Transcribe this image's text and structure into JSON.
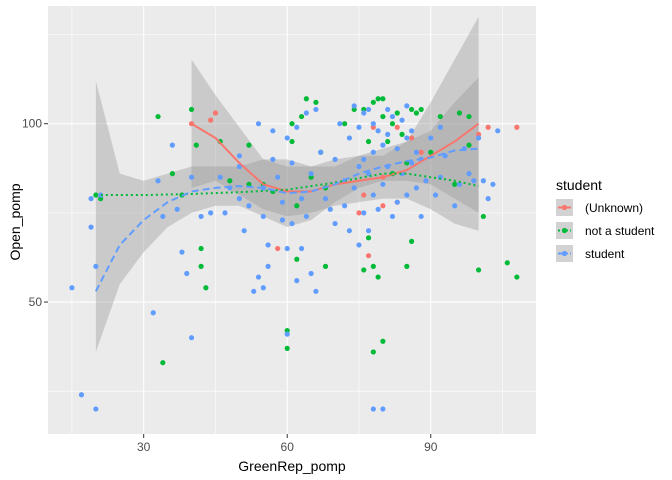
{
  "chart_data": {
    "type": "scatter",
    "xlabel": "GreenRep_pomp",
    "ylabel": "Open_pomp",
    "xlim": [
      10,
      112
    ],
    "ylim": [
      13,
      133
    ],
    "x_ticks": [
      30,
      60,
      90
    ],
    "y_ticks": [
      50,
      100
    ],
    "grid": true,
    "legend": {
      "title": "student",
      "position": "right",
      "entries": [
        "(Unknown)",
        "not a student",
        "student"
      ]
    },
    "series": [
      {
        "name": "(Unknown)",
        "color": "#F8766D",
        "line_style": "solid",
        "points": [
          [
            40,
            100
          ],
          [
            44,
            101
          ],
          [
            45,
            103
          ],
          [
            58,
            65
          ],
          [
            76,
            80
          ],
          [
            77,
            63
          ],
          [
            78,
            99
          ],
          [
            80,
            85
          ],
          [
            83,
            99
          ],
          [
            86,
            96
          ],
          [
            88,
            92
          ],
          [
            100,
            97
          ],
          [
            102,
            99
          ],
          [
            108,
            99
          ],
          [
            80,
            77
          ],
          [
            83,
            78
          ],
          [
            75,
            75
          ]
        ],
        "smooth": [
          [
            40,
            100
          ],
          [
            45,
            96
          ],
          [
            50,
            89
          ],
          [
            55,
            83
          ],
          [
            60,
            81
          ],
          [
            65,
            81
          ],
          [
            70,
            83
          ],
          [
            75,
            84
          ],
          [
            80,
            85
          ],
          [
            85,
            87
          ],
          [
            90,
            91
          ],
          [
            95,
            95
          ],
          [
            100,
            100
          ]
        ],
        "band": [
          [
            40,
            82,
            118
          ],
          [
            45,
            84,
            108
          ],
          [
            50,
            80,
            99
          ],
          [
            55,
            76,
            90
          ],
          [
            60,
            74,
            88
          ],
          [
            65,
            75,
            88
          ],
          [
            70,
            77,
            90
          ],
          [
            75,
            78,
            91
          ],
          [
            80,
            79,
            91
          ],
          [
            85,
            79,
            95
          ],
          [
            90,
            76,
            106
          ],
          [
            95,
            72,
            118
          ],
          [
            100,
            70,
            130
          ]
        ]
      },
      {
        "name": "not a student",
        "color": "#00BA38",
        "line_style": "dotted",
        "points": [
          [
            20,
            80
          ],
          [
            21,
            79
          ],
          [
            33,
            102
          ],
          [
            34,
            33
          ],
          [
            36,
            86
          ],
          [
            38,
            80
          ],
          [
            40,
            104
          ],
          [
            41,
            94
          ],
          [
            42,
            60
          ],
          [
            42,
            65
          ],
          [
            43,
            54
          ],
          [
            46,
            95
          ],
          [
            48,
            84
          ],
          [
            52,
            94
          ],
          [
            52,
            83
          ],
          [
            55,
            83
          ],
          [
            57,
            81
          ],
          [
            60,
            42
          ],
          [
            60,
            37
          ],
          [
            61,
            95
          ],
          [
            61,
            100
          ],
          [
            62,
            77
          ],
          [
            62,
            62
          ],
          [
            63,
            102
          ],
          [
            64,
            107
          ],
          [
            65,
            85
          ],
          [
            66,
            106
          ],
          [
            67,
            92
          ],
          [
            68,
            82
          ],
          [
            68,
            60
          ],
          [
            72,
            100
          ],
          [
            74,
            104
          ],
          [
            76,
            104
          ],
          [
            76,
            59
          ],
          [
            77,
            95
          ],
          [
            77,
            68
          ],
          [
            78,
            106
          ],
          [
            78,
            60
          ],
          [
            78,
            36
          ],
          [
            79,
            107
          ],
          [
            79,
            57
          ],
          [
            80,
            107
          ],
          [
            80,
            39
          ],
          [
            80,
            102
          ],
          [
            81,
            95
          ],
          [
            82,
            100
          ],
          [
            82,
            86
          ],
          [
            83,
            103
          ],
          [
            84,
            97
          ],
          [
            85,
            89
          ],
          [
            85,
            60
          ],
          [
            86,
            104
          ],
          [
            86,
            67
          ],
          [
            87,
            103
          ],
          [
            88,
            104
          ],
          [
            90,
            92
          ],
          [
            92,
            102
          ],
          [
            95,
            83
          ],
          [
            96,
            103
          ],
          [
            98,
            102
          ],
          [
            98,
            94
          ],
          [
            100,
            59
          ],
          [
            101,
            74
          ],
          [
            106,
            61
          ],
          [
            108,
            57
          ]
        ],
        "smooth": [
          [
            20,
            80
          ],
          [
            30,
            80
          ],
          [
            40,
            80.3
          ],
          [
            50,
            80.8
          ],
          [
            60,
            81.5
          ],
          [
            70,
            83.5
          ],
          [
            80,
            86
          ],
          [
            85,
            86
          ],
          [
            90,
            85
          ],
          [
            95,
            84
          ],
          [
            100,
            82.5
          ]
        ]
      },
      {
        "name": "student",
        "color": "#619CFF",
        "line_style": "dashed",
        "points": [
          [
            15,
            54
          ],
          [
            17,
            24
          ],
          [
            19,
            79
          ],
          [
            20,
            20
          ],
          [
            20,
            60
          ],
          [
            21,
            80
          ],
          [
            32,
            47
          ],
          [
            33,
            84
          ],
          [
            34,
            74
          ],
          [
            36,
            94
          ],
          [
            37,
            76
          ],
          [
            38,
            64
          ],
          [
            39,
            58
          ],
          [
            40,
            40
          ],
          [
            40,
            85
          ],
          [
            42,
            74
          ],
          [
            44,
            75
          ],
          [
            46,
            85
          ],
          [
            47,
            75
          ],
          [
            48,
            82
          ],
          [
            50,
            91
          ],
          [
            50,
            88
          ],
          [
            50,
            79
          ],
          [
            51,
            70
          ],
          [
            52,
            77
          ],
          [
            53,
            53
          ],
          [
            54,
            100
          ],
          [
            54,
            57
          ],
          [
            55,
            54
          ],
          [
            55,
            82
          ],
          [
            55,
            74
          ],
          [
            56,
            66
          ],
          [
            56,
            60
          ],
          [
            57,
            98
          ],
          [
            57,
            90
          ],
          [
            58,
            85
          ],
          [
            59,
            78
          ],
          [
            59,
            73
          ],
          [
            60,
            41
          ],
          [
            60,
            65
          ],
          [
            60,
            96
          ],
          [
            61,
            89
          ],
          [
            61,
            72
          ],
          [
            62,
            99
          ],
          [
            62,
            56
          ],
          [
            63,
            79
          ],
          [
            63,
            65
          ],
          [
            64,
            103
          ],
          [
            64,
            74
          ],
          [
            65,
            58
          ],
          [
            65,
            86
          ],
          [
            66,
            53
          ],
          [
            66,
            104
          ],
          [
            67,
            92
          ],
          [
            68,
            79
          ],
          [
            69,
            76
          ],
          [
            70,
            90
          ],
          [
            70,
            72
          ],
          [
            71,
            100
          ],
          [
            72,
            77
          ],
          [
            72,
            84
          ],
          [
            73,
            96
          ],
          [
            73,
            70
          ],
          [
            74,
            105
          ],
          [
            74,
            82
          ],
          [
            75,
            99
          ],
          [
            75,
            88
          ],
          [
            75,
            66
          ],
          [
            76,
            103
          ],
          [
            76,
            90
          ],
          [
            76,
            75
          ],
          [
            77,
            104
          ],
          [
            77,
            86
          ],
          [
            77,
            70
          ],
          [
            78,
            100
          ],
          [
            78,
            92
          ],
          [
            78,
            80
          ],
          [
            78,
            20
          ],
          [
            79,
            98
          ],
          [
            79,
            76
          ],
          [
            80,
            94
          ],
          [
            80,
            20
          ],
          [
            80,
            83
          ],
          [
            81,
            104
          ],
          [
            81,
            97
          ],
          [
            81,
            88
          ],
          [
            82,
            102
          ],
          [
            82,
            74
          ],
          [
            83,
            93
          ],
          [
            83,
            78
          ],
          [
            84,
            101
          ],
          [
            84,
            86
          ],
          [
            85,
            105
          ],
          [
            85,
            96
          ],
          [
            85,
            80
          ],
          [
            86,
            98
          ],
          [
            86,
            89
          ],
          [
            87,
            92
          ],
          [
            87,
            82
          ],
          [
            88,
            90
          ],
          [
            88,
            74
          ],
          [
            89,
            84
          ],
          [
            90,
            96
          ],
          [
            91,
            80
          ],
          [
            92,
            99
          ],
          [
            92,
            85
          ],
          [
            93,
            91
          ],
          [
            95,
            77
          ],
          [
            96,
            83
          ],
          [
            97,
            93
          ],
          [
            98,
            86
          ],
          [
            99,
            84
          ],
          [
            100,
            96
          ],
          [
            101,
            84
          ],
          [
            102,
            79
          ],
          [
            103,
            83
          ],
          [
            104,
            98
          ],
          [
            19,
            71
          ]
        ],
        "smooth": [
          [
            20,
            53
          ],
          [
            25,
            66
          ],
          [
            30,
            73
          ],
          [
            35,
            78
          ],
          [
            40,
            81
          ],
          [
            45,
            82
          ],
          [
            50,
            82.5
          ],
          [
            55,
            82
          ],
          [
            60,
            80.5
          ],
          [
            65,
            81
          ],
          [
            70,
            83
          ],
          [
            75,
            86
          ],
          [
            80,
            88
          ],
          [
            85,
            89.5
          ],
          [
            90,
            90.5
          ],
          [
            95,
            92.5
          ],
          [
            100,
            93
          ]
        ],
        "band": [
          [
            20,
            36,
            112
          ],
          [
            25,
            55,
            86
          ],
          [
            30,
            64,
            84
          ],
          [
            35,
            71,
            86
          ],
          [
            40,
            75,
            88
          ],
          [
            45,
            77,
            88
          ],
          [
            50,
            77,
            88
          ],
          [
            55,
            74,
            90
          ],
          [
            60,
            71,
            90
          ],
          [
            65,
            73,
            88
          ],
          [
            70,
            78,
            88
          ],
          [
            75,
            82,
            91
          ],
          [
            80,
            84,
            93
          ],
          [
            85,
            84,
            95
          ],
          [
            90,
            83,
            98
          ],
          [
            95,
            79,
            106
          ],
          [
            100,
            75,
            113
          ]
        ]
      }
    ]
  }
}
